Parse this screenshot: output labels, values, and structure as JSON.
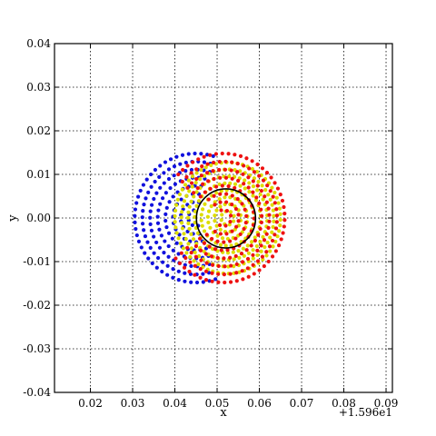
{
  "chart_data": {
    "type": "scatter",
    "title": "",
    "xlabel": "x",
    "ylabel": "y",
    "x_offset_label": "+1.596e1",
    "xlim": [
      0.0115,
      0.0915
    ],
    "ylim": [
      -0.04,
      0.04
    ],
    "x_ticks": [
      0.02,
      0.03,
      0.04,
      0.05,
      0.06,
      0.07,
      0.08,
      0.09
    ],
    "x_tick_labels": [
      "0.02",
      "0.03",
      "0.04",
      "0.05",
      "0.06",
      "0.07",
      "0.08",
      "0.09"
    ],
    "y_ticks": [
      0.04,
      0.03,
      0.02,
      0.01,
      0.0,
      -0.01,
      -0.02,
      -0.03,
      -0.04
    ],
    "y_tick_labels": [
      "0.04",
      "0.03",
      "0.02",
      "0.01",
      "0.00",
      "-0.01",
      "-0.02",
      "-0.03",
      "-0.04"
    ],
    "grid": true,
    "colors": {
      "red": "#ee1111",
      "blue": "#1111dd",
      "yellow": "#dddd00",
      "circle": "#000000",
      "grid": "#000000"
    },
    "series": [
      {
        "color_key": "red",
        "center": [
          0.0515,
          0.0
        ],
        "radius": 0.0145,
        "description_note": "red dots on concentric rings"
      },
      {
        "color_key": "blue",
        "center": [
          0.045,
          0.0
        ],
        "radius": 0.0145,
        "partial": "left"
      },
      {
        "color_key": "yellow",
        "center": [
          0.0525,
          0.0
        ],
        "radius": 0.0125
      }
    ],
    "circle": {
      "center": [
        0.0521,
        -0.0001
      ],
      "radius": 0.007
    }
  }
}
